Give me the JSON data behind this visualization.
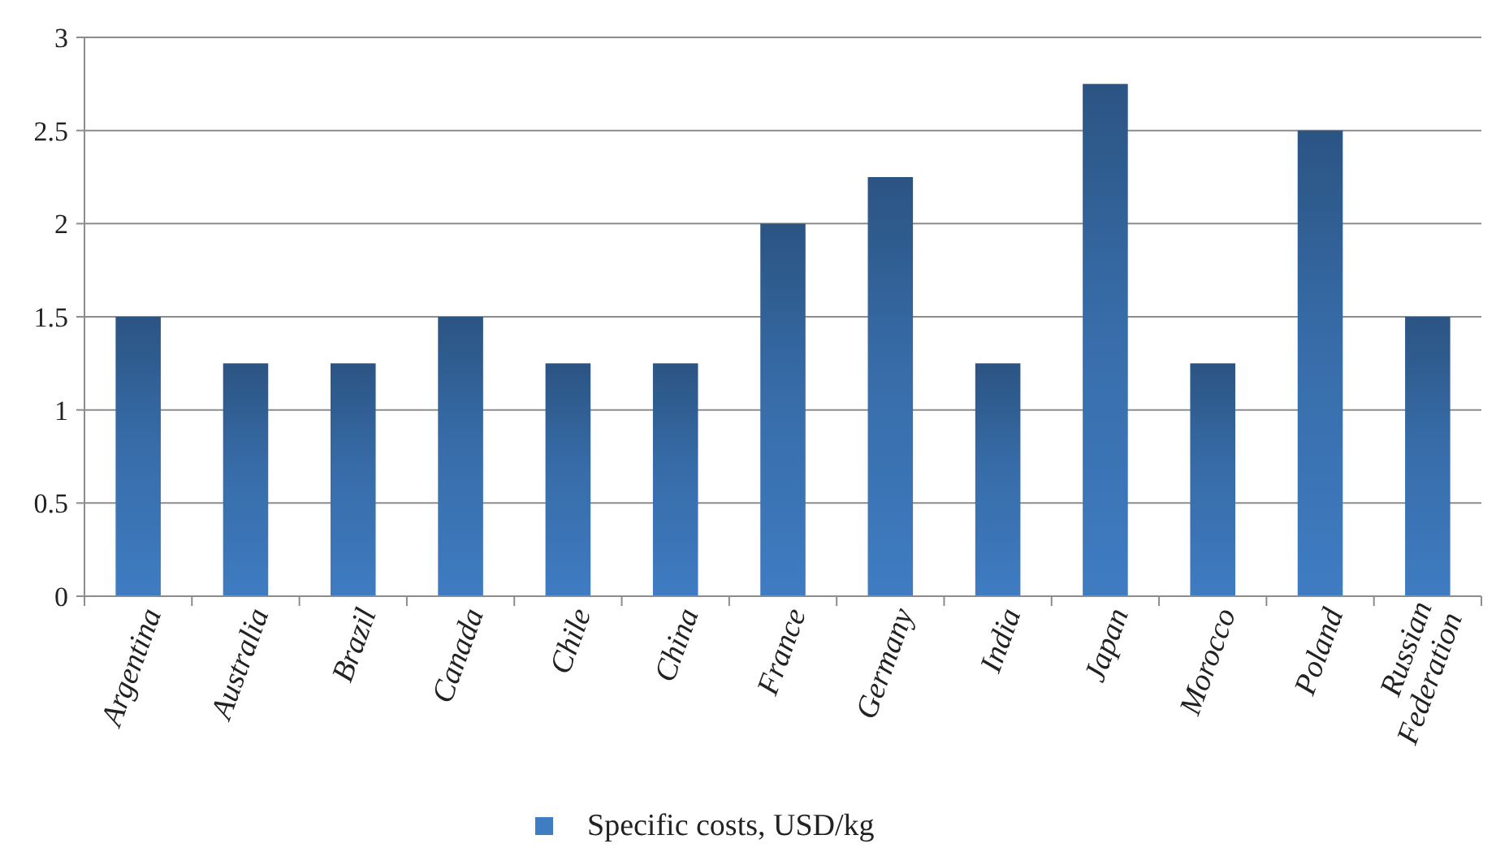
{
  "chart_data": {
    "type": "bar",
    "categories": [
      "Argentina",
      "Australia",
      "Brazil",
      "Canada",
      "Chile",
      "China",
      "France",
      "Germany",
      "India",
      "Japan",
      "Morocco",
      "Poland",
      "Russian Federation"
    ],
    "series": [
      {
        "name": "Specific costs, USD/kg",
        "color": "#3f7cc2",
        "values": [
          1.5,
          1.25,
          1.25,
          1.5,
          1.25,
          1.25,
          2,
          2.25,
          1.25,
          2.75,
          1.25,
          2.5,
          1.5
        ]
      }
    ],
    "ylim": [
      0,
      3
    ],
    "yticks": [
      0,
      0.5,
      1,
      1.5,
      2,
      2.5,
      3
    ],
    "grid": "y",
    "legend": "bottom"
  }
}
